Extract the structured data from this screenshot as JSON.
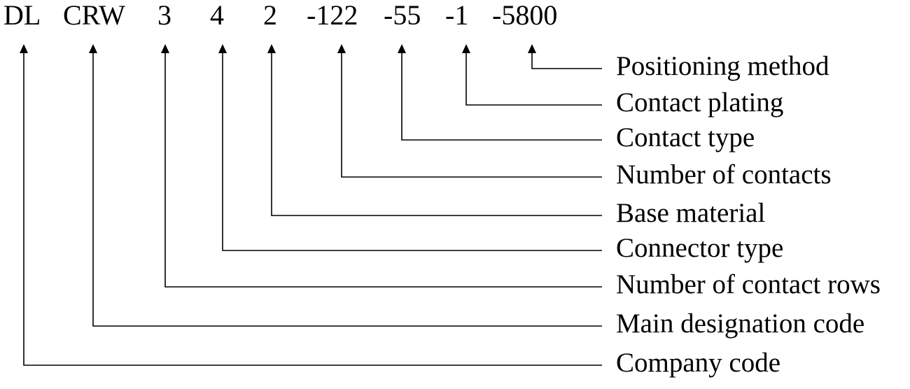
{
  "codes": [
    {
      "code": "DL",
      "meaning": "Company code"
    },
    {
      "code": "CRW",
      "meaning": "Main designation code"
    },
    {
      "code": "3",
      "meaning": "Number of contact rows"
    },
    {
      "code": "4",
      "meaning": "Connector type"
    },
    {
      "code": "2",
      "meaning": "Base material"
    },
    {
      "code": "-122",
      "meaning": "Number of contacts"
    },
    {
      "code": "-55",
      "meaning": "Contact type"
    },
    {
      "code": "-1",
      "meaning": "Contact plating"
    },
    {
      "code": "-5800",
      "meaning": "Positioning method"
    }
  ]
}
